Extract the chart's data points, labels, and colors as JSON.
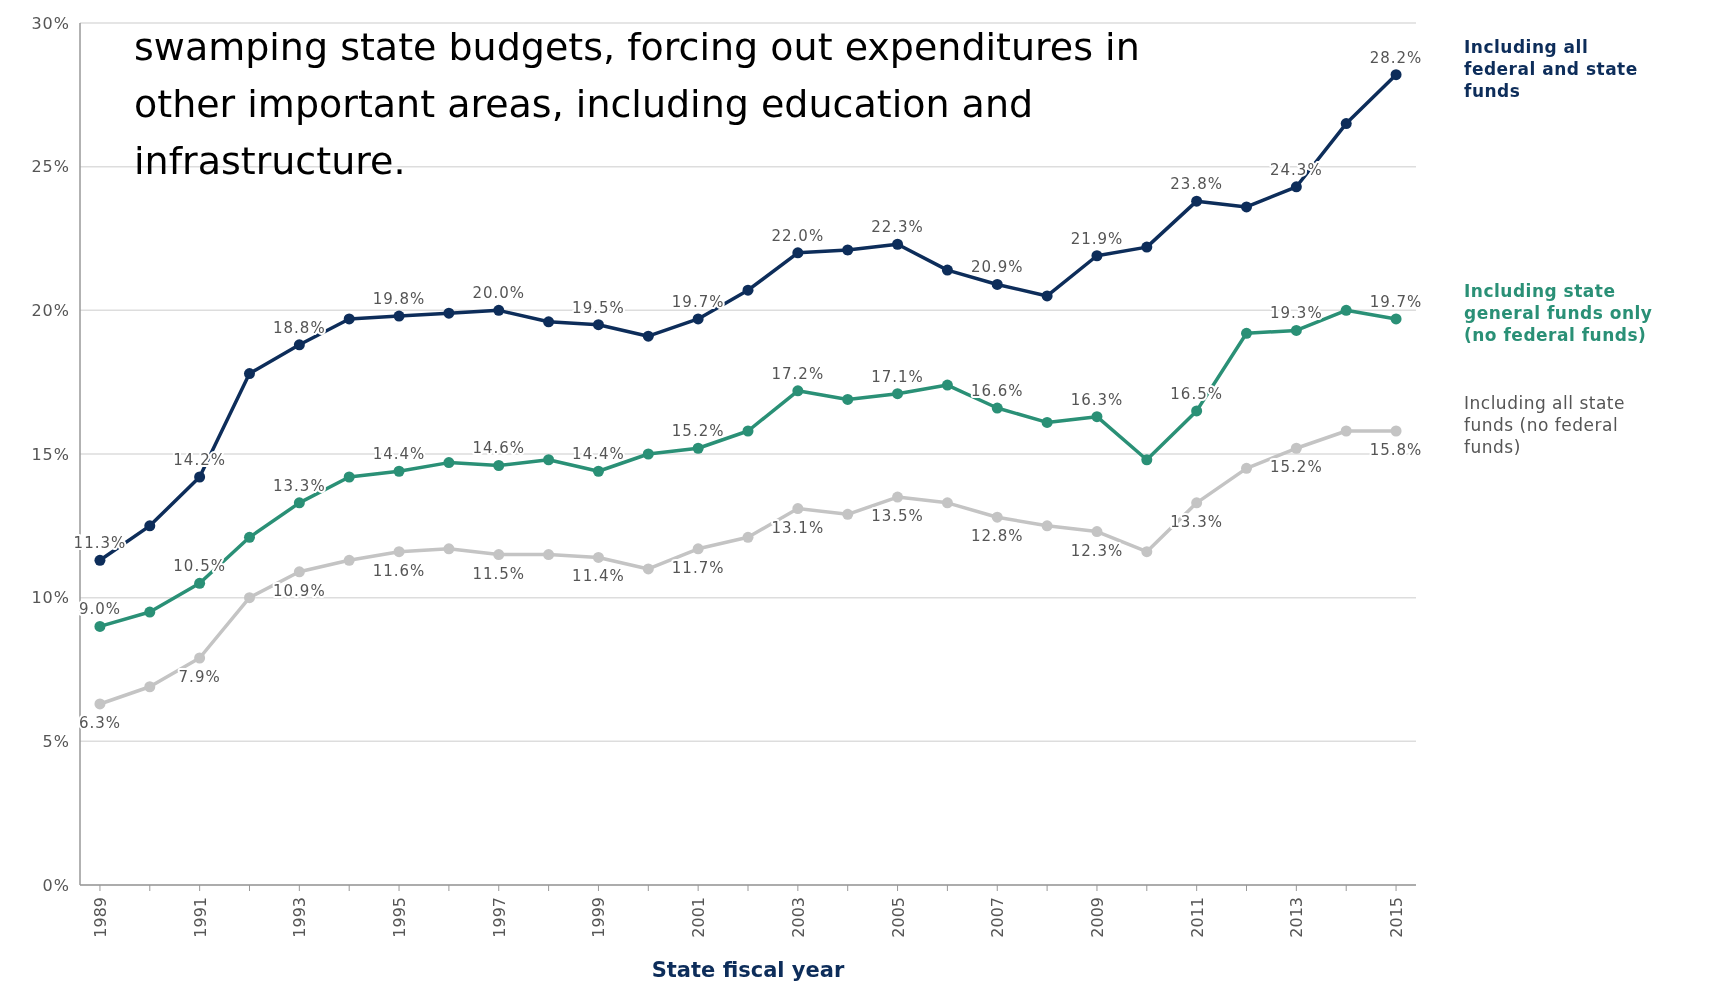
{
  "chart_data": {
    "type": "line",
    "xlabel": "State fiscal year",
    "categories": [
      "1989",
      null,
      "1991",
      null,
      "1993",
      null,
      "1995",
      null,
      "1997",
      null,
      "1999",
      null,
      "2001",
      null,
      "2003",
      null,
      "2005",
      null,
      "2007",
      null,
      "2009",
      null,
      "2011",
      null,
      "2013",
      null,
      "2015"
    ],
    "series": [
      {
        "name": "Including all federal and state funds",
        "color": "#0d2d5a",
        "values": [
          11.3,
          12.5,
          14.2,
          17.8,
          18.8,
          19.7,
          19.8,
          19.9,
          20.0,
          19.6,
          19.5,
          19.1,
          19.7,
          20.7,
          22.0,
          22.1,
          22.3,
          21.4,
          20.9,
          20.5,
          21.9,
          22.2,
          23.8,
          23.6,
          24.3,
          26.5,
          28.2
        ],
        "value_labels": [
          "11.3%",
          null,
          "14.2%",
          null,
          "18.8%",
          null,
          "19.8%",
          null,
          "20.0%",
          null,
          "19.5%",
          null,
          "19.7%",
          null,
          "22.0%",
          null,
          "22.3%",
          null,
          "20.9%",
          null,
          "21.9%",
          null,
          "23.8%",
          null,
          "24.3%",
          null,
          "28.2%"
        ]
      },
      {
        "name": "Including state general funds only (no federal funds)",
        "color": "#2a9076",
        "values": [
          9.0,
          9.5,
          10.5,
          12.1,
          13.3,
          14.2,
          14.4,
          14.7,
          14.6,
          14.8,
          14.4,
          15.0,
          15.2,
          15.8,
          17.2,
          16.9,
          17.1,
          17.4,
          16.6,
          16.1,
          16.3,
          14.8,
          16.5,
          19.2,
          19.3,
          20.0,
          19.7
        ],
        "value_labels": [
          "9.0%",
          null,
          "10.5%",
          null,
          "13.3%",
          null,
          "14.4%",
          null,
          "14.6%",
          null,
          "14.4%",
          null,
          "15.2%",
          null,
          "17.2%",
          null,
          "17.1%",
          null,
          "16.6%",
          null,
          "16.3%",
          null,
          "16.5%",
          null,
          "19.3%",
          null,
          "19.7%"
        ]
      },
      {
        "name": "Including all state funds (no federal funds)",
        "color": "#c4c4c4",
        "values": [
          6.3,
          6.9,
          7.9,
          10.0,
          10.9,
          11.3,
          11.6,
          11.7,
          11.5,
          11.5,
          11.4,
          11.0,
          11.7,
          12.1,
          13.1,
          12.9,
          13.5,
          13.3,
          12.8,
          12.5,
          12.3,
          11.6,
          13.3,
          14.5,
          15.2,
          15.8,
          15.8
        ],
        "value_labels": [
          "6.3%",
          null,
          "7.9%",
          null,
          "10.9%",
          null,
          "11.6%",
          null,
          "11.5%",
          null,
          "11.4%",
          null,
          "11.7%",
          null,
          "13.1%",
          null,
          "13.5%",
          null,
          "12.8%",
          null,
          "12.3%",
          null,
          "13.3%",
          null,
          "15.2%",
          null,
          "15.8%"
        ]
      }
    ],
    "ylim": [
      0,
      30
    ],
    "yticks": [
      {
        "value": 0,
        "label": "0%"
      },
      {
        "value": 5,
        "label": "5%"
      },
      {
        "value": 10,
        "label": "10%"
      },
      {
        "value": 15,
        "label": "15%"
      },
      {
        "value": 20,
        "label": "20%"
      },
      {
        "value": 25,
        "label": "25%"
      },
      {
        "value": 30,
        "label": "30%"
      }
    ],
    "grid": "y",
    "legend": "right",
    "marker": "circle",
    "line_style": "solid",
    "annotations": [
      "swamping state budgets, forcing out expenditures in other important areas, including education and infrastructure."
    ]
  }
}
